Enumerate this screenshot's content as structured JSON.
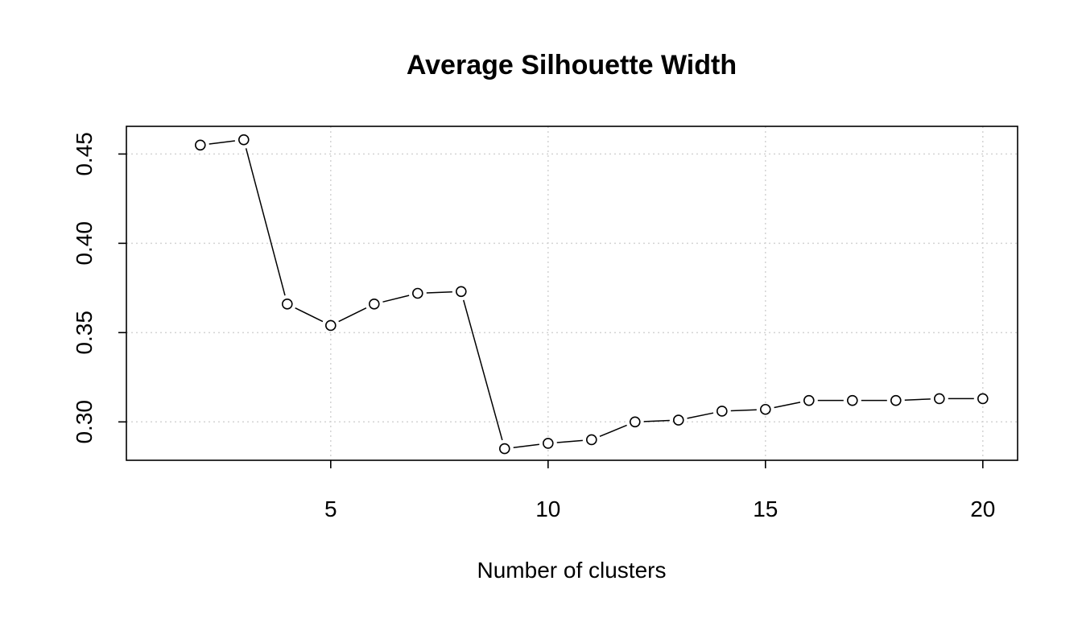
{
  "chart_data": {
    "type": "line",
    "title": "Average Silhouette Width",
    "xlabel": "Number of clusters",
    "ylabel": "",
    "xlim": [
      0.3,
      20.8
    ],
    "ylim": [
      0.2785,
      0.4655
    ],
    "x_ticks": [
      5,
      10,
      15,
      20
    ],
    "y_ticks": [
      0.3,
      0.35,
      0.4,
      0.45
    ],
    "x_tick_labels": [
      "5",
      "10",
      "15",
      "20"
    ],
    "y_tick_labels": [
      "0.30",
      "0.35",
      "0.40",
      "0.45"
    ],
    "grid": true,
    "line_style": "both points and lines",
    "series": [
      {
        "x": [
          2,
          3,
          4,
          5,
          6,
          7,
          8,
          9,
          10,
          11,
          12,
          13,
          14,
          15,
          16,
          17,
          18,
          19,
          20
        ],
        "values": [
          0.455,
          0.458,
          0.366,
          0.354,
          0.366,
          0.372,
          0.373,
          0.285,
          0.288,
          0.29,
          0.3,
          0.301,
          0.306,
          0.307,
          0.312,
          0.312,
          0.312,
          0.313,
          0.313
        ]
      }
    ]
  }
}
